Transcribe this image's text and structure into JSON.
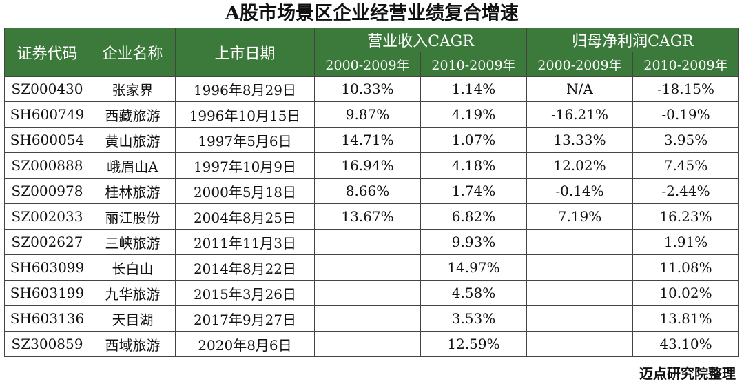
{
  "title": "A股市场景区企业经营业绩复合增速",
  "headers": {
    "code": "证券代码",
    "name": "企业名称",
    "date": "上市日期",
    "revenue_group": "营业收入CAGR",
    "profit_group": "归母净利润CAGR",
    "period_a": "2000-2009年",
    "period_b": "2010-2009年"
  },
  "rows": [
    {
      "code": "SZ000430",
      "name": "张家界",
      "date": "1996年8月29日",
      "rev_a": "10.33%",
      "rev_b": "1.14%",
      "prof_a": "N/A",
      "prof_b": "-18.15%"
    },
    {
      "code": "SH600749",
      "name": "西藏旅游",
      "date": "1996年10月15日",
      "rev_a": "9.87%",
      "rev_b": "4.19%",
      "prof_a": "-16.21%",
      "prof_b": "-0.19%"
    },
    {
      "code": "SH600054",
      "name": "黄山旅游",
      "date": "1997年5月6日",
      "rev_a": "14.71%",
      "rev_b": "1.07%",
      "prof_a": "13.33%",
      "prof_b": "3.95%"
    },
    {
      "code": "SZ000888",
      "name": "峨眉山A",
      "date": "1997年10月9日",
      "rev_a": "16.94%",
      "rev_b": "4.18%",
      "prof_a": "12.02%",
      "prof_b": "7.45%"
    },
    {
      "code": "SZ000978",
      "name": "桂林旅游",
      "date": "2000年5月18日",
      "rev_a": "8.66%",
      "rev_b": "1.74%",
      "prof_a": "-0.14%",
      "prof_b": "-2.44%"
    },
    {
      "code": "SZ002033",
      "name": "丽江股份",
      "date": "2004年8月25日",
      "rev_a": "13.67%",
      "rev_b": "6.82%",
      "prof_a": "7.19%",
      "prof_b": "16.23%"
    },
    {
      "code": "SZ002627",
      "name": "三峡旅游",
      "date": "2011年11月3日",
      "rev_a": "",
      "rev_b": "9.93%",
      "prof_a": "",
      "prof_b": "1.91%"
    },
    {
      "code": "SH603099",
      "name": "长白山",
      "date": "2014年8月22日",
      "rev_a": "",
      "rev_b": "14.97%",
      "prof_a": "",
      "prof_b": "11.08%"
    },
    {
      "code": "SH603199",
      "name": "九华旅游",
      "date": "2015年3月26日",
      "rev_a": "",
      "rev_b": "4.58%",
      "prof_a": "",
      "prof_b": "10.02%"
    },
    {
      "code": "SH603136",
      "name": "天目湖",
      "date": "2017年9月27日",
      "rev_a": "",
      "rev_b": "3.53%",
      "prof_a": "",
      "prof_b": "13.81%"
    },
    {
      "code": "SZ300859",
      "name": "西域旅游",
      "date": "2020年8月6日",
      "rev_a": "",
      "rev_b": "12.59%",
      "prof_a": "",
      "prof_b": "43.10%"
    }
  ],
  "source": "迈点研究院整理",
  "colors": {
    "header_bg": "#3b7a3a",
    "header_text": "#ffffff",
    "border": "#444444"
  }
}
